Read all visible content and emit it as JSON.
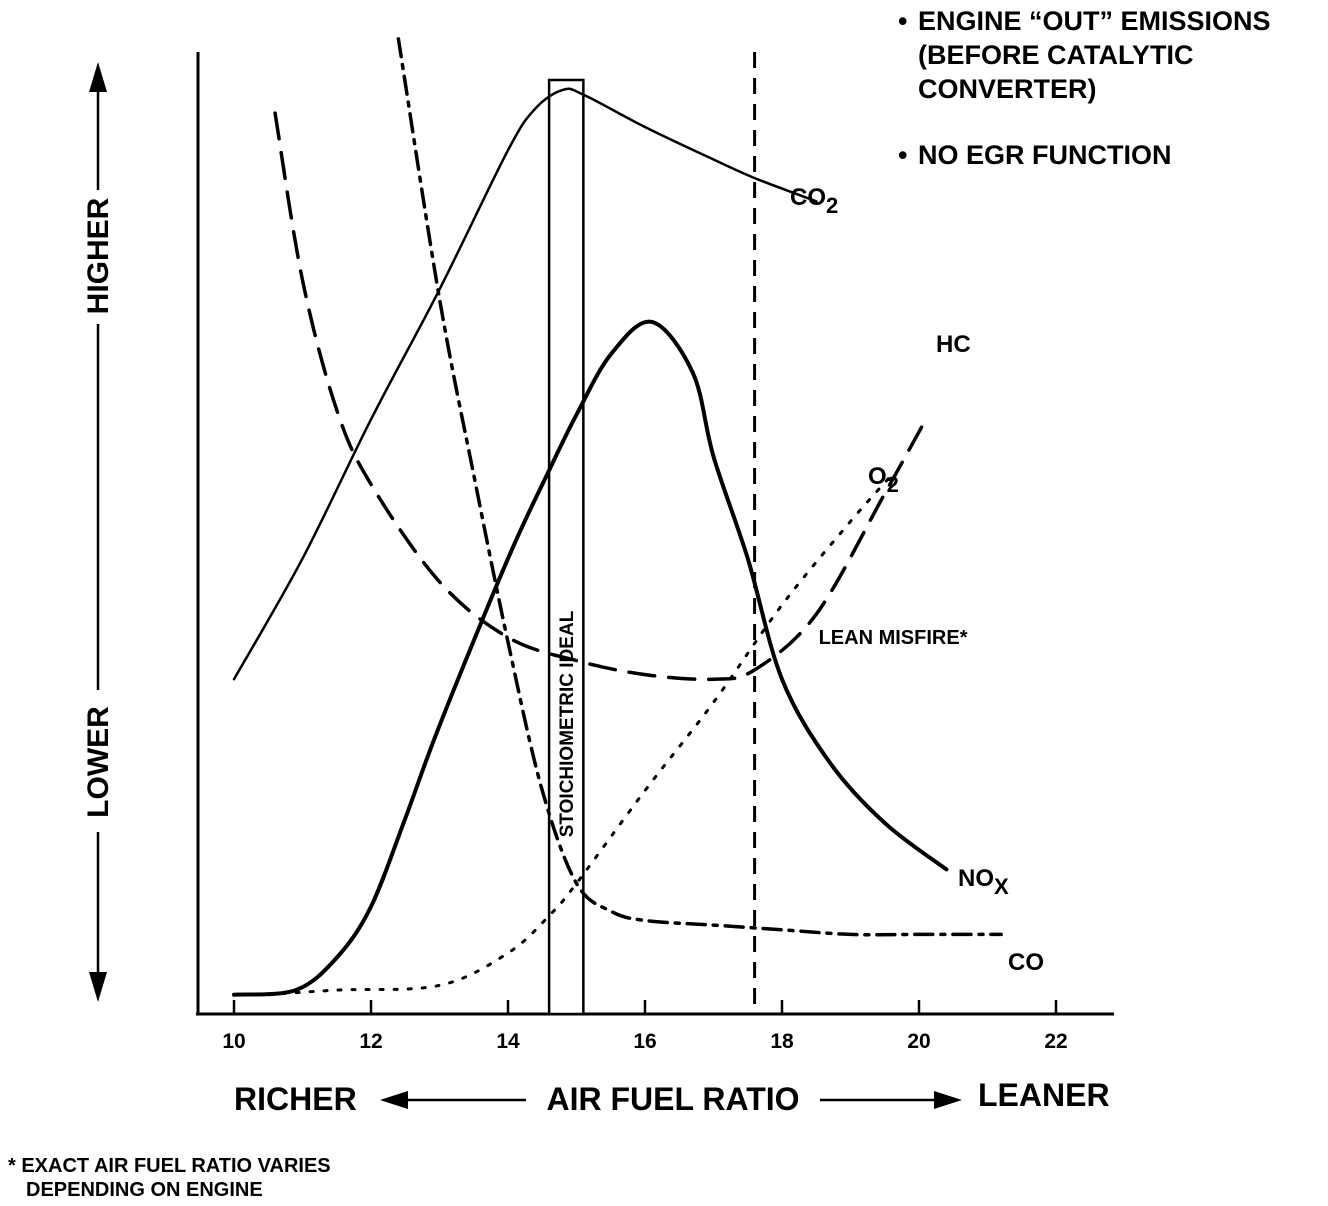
{
  "notes": [
    {
      "bullet": "•",
      "text": "ENGINE “OUT” EMISSIONS (BEFORE CATALYTIC CONVERTER)"
    },
    {
      "bullet": "•",
      "text": "NO EGR FUNCTION"
    }
  ],
  "footnote": {
    "line1": "* EXACT AIR FUEL RATIO VARIES",
    "line2": "DEPENDING ON ENGINE"
  },
  "chart_data": {
    "type": "line",
    "xlabel": "AIR FUEL RATIO",
    "xlabel_left": "RICHER",
    "xlabel_right": "LEANER",
    "ylabel_top": "HIGHER",
    "ylabel_bottom": "LOWER",
    "x_ticks": [
      10,
      12,
      14,
      16,
      18,
      20,
      22
    ],
    "xlim": [
      9.5,
      23
    ],
    "ylim": [
      0,
      100
    ],
    "stoich_band": {
      "label": "STOICHIOMETRIC IDEAL",
      "x_range": [
        14.6,
        15.1
      ]
    },
    "lean_misfire": {
      "label": "LEAN MISFIRE*",
      "x": 17.6
    },
    "series": [
      {
        "name": "CO",
        "sub": "2",
        "line_style": "solid",
        "stroke_width": 2.5,
        "x": [
          10,
          11,
          12,
          13,
          14,
          14.4,
          14.8,
          15.1,
          16,
          17,
          17.6,
          18.5
        ],
        "y": [
          35,
          48,
          63,
          77,
          92,
          96.5,
          98.5,
          98,
          94.5,
          91,
          89,
          86.5
        ]
      },
      {
        "name": "HC",
        "sub": "",
        "line_style": "dashed",
        "stroke_width": 3.5,
        "x": [
          10.6,
          11,
          11.5,
          12,
          13,
          14,
          15,
          16,
          17,
          17.6,
          18.5,
          19.5,
          20.1
        ],
        "y": [
          96,
          78,
          64,
          56,
          45.5,
          39.5,
          37,
          35.5,
          35,
          36,
          42,
          55,
          63
        ]
      },
      {
        "name": "O",
        "sub": "2",
        "line_style": "dotted",
        "stroke_width": 3,
        "x": [
          10.5,
          11.5,
          13,
          14,
          14.6,
          15,
          16,
          17,
          18,
          19,
          19.6
        ],
        "y": [
          1,
          1.5,
          2,
          5.5,
          9.5,
          13,
          23,
          32.5,
          43,
          52,
          57
        ]
      },
      {
        "name": "NO",
        "sub": "X",
        "line_style": "solid",
        "stroke_width": 4,
        "x": [
          10,
          10.9,
          11.5,
          12,
          12.5,
          13,
          14,
          14.6,
          15,
          15.5,
          16.1,
          16.7,
          17,
          17.5,
          18,
          18.7,
          19.5,
          20.4
        ],
        "y": [
          1,
          1.5,
          5,
          10.5,
          20,
          30,
          48,
          57.5,
          63.5,
          70,
          73.5,
          68,
          59,
          48,
          35,
          26,
          19.5,
          14.5
        ]
      },
      {
        "name": "CO",
        "sub": "",
        "line_style": "dashdot",
        "stroke_width": 3.5,
        "x": [
          12.4,
          13,
          13.5,
          14,
          14.5,
          15,
          15.5,
          16,
          17,
          18,
          19,
          20,
          21.2
        ],
        "y": [
          104,
          76,
          57,
          39,
          23,
          13,
          10,
          9,
          8.5,
          8,
          7.5,
          7.5,
          7.5
        ]
      }
    ]
  }
}
